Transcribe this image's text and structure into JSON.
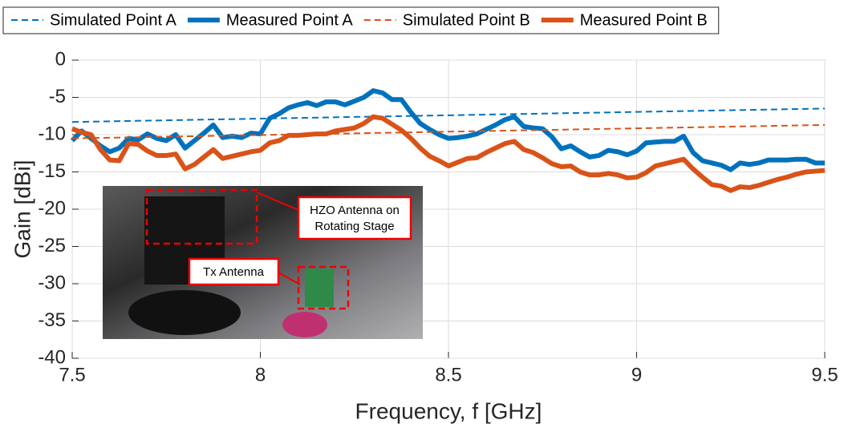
{
  "chart_data": {
    "type": "line",
    "xlabel": "Frequency, f [GHz]",
    "ylabel": "Gain [dBi]",
    "xlim": [
      7.5,
      9.5
    ],
    "ylim": [
      -40,
      0
    ],
    "xticks": [
      7.5,
      8,
      8.5,
      9,
      9.5
    ],
    "yticks": [
      0,
      -5,
      -10,
      -15,
      -20,
      -25,
      -30,
      -35,
      -40
    ],
    "grid": true,
    "legend": "top",
    "annotations": [
      "HZO Antenna on Rotating Stage",
      "Tx Antenna"
    ],
    "series": [
      {
        "name": "Simulated Point A",
        "color": "#0072bd",
        "style": "dashed",
        "x": [
          7.5,
          9.5
        ],
        "values": [
          -8.3,
          -6.5
        ]
      },
      {
        "name": "Measured Point A",
        "color": "#0072bd",
        "style": "solid",
        "x": [
          7.5,
          7.525,
          7.55,
          7.575,
          7.6,
          7.625,
          7.65,
          7.675,
          7.7,
          7.725,
          7.75,
          7.775,
          7.8,
          7.825,
          7.85,
          7.875,
          7.9,
          7.925,
          7.95,
          7.975,
          8.0,
          8.025,
          8.05,
          8.075,
          8.1,
          8.125,
          8.15,
          8.175,
          8.2,
          8.225,
          8.25,
          8.275,
          8.3,
          8.325,
          8.35,
          8.375,
          8.4,
          8.425,
          8.45,
          8.475,
          8.5,
          8.525,
          8.55,
          8.575,
          8.6,
          8.625,
          8.65,
          8.675,
          8.7,
          8.725,
          8.75,
          8.775,
          8.8,
          8.825,
          8.85,
          8.875,
          8.9,
          8.925,
          8.95,
          8.975,
          9.0,
          9.025,
          9.05,
          9.075,
          9.1,
          9.125,
          9.15,
          9.175,
          9.2,
          9.225,
          9.25,
          9.275,
          9.3,
          9.325,
          9.35,
          9.375,
          9.4,
          9.425,
          9.45,
          9.475,
          9.5
        ],
        "values": [
          -10.8,
          -9.5,
          -10.5,
          -11.5,
          -12.3,
          -11.8,
          -10.5,
          -10.7,
          -9.9,
          -10.5,
          -10.8,
          -10.0,
          -11.8,
          -10.8,
          -9.8,
          -8.7,
          -10.4,
          -10.2,
          -10.4,
          -9.8,
          -9.9,
          -7.8,
          -7.2,
          -6.4,
          -6.0,
          -5.7,
          -6.1,
          -5.6,
          -5.6,
          -6.0,
          -5.5,
          -5.0,
          -4.1,
          -4.4,
          -5.3,
          -5.3,
          -7.0,
          -8.5,
          -9.3,
          -10.0,
          -10.5,
          -10.4,
          -10.2,
          -9.9,
          -9.3,
          -8.7,
          -8.0,
          -7.6,
          -8.9,
          -9.1,
          -9.2,
          -10.3,
          -11.9,
          -11.5,
          -12.3,
          -13.0,
          -12.8,
          -12.1,
          -12.3,
          -12.7,
          -12.2,
          -11.1,
          -11.0,
          -10.9,
          -10.9,
          -10.2,
          -12.4,
          -13.5,
          -13.8,
          -14.1,
          -14.7,
          -13.8,
          -14.0,
          -13.8,
          -13.4,
          -13.4,
          -13.4,
          -13.3,
          -13.3,
          -13.8,
          -13.8
        ]
      },
      {
        "name": "Simulated Point B",
        "color": "#d95319",
        "style": "dashed",
        "x": [
          7.5,
          9.5
        ],
        "values": [
          -10.5,
          -8.7
        ]
      },
      {
        "name": "Measured Point B",
        "color": "#d95319",
        "style": "solid",
        "x": [
          7.5,
          7.525,
          7.55,
          7.575,
          7.6,
          7.625,
          7.65,
          7.675,
          7.7,
          7.725,
          7.75,
          7.775,
          7.8,
          7.825,
          7.85,
          7.875,
          7.9,
          7.925,
          7.95,
          7.975,
          8.0,
          8.025,
          8.05,
          8.075,
          8.1,
          8.125,
          8.15,
          8.175,
          8.2,
          8.225,
          8.25,
          8.275,
          8.3,
          8.325,
          8.35,
          8.375,
          8.4,
          8.425,
          8.45,
          8.475,
          8.5,
          8.525,
          8.55,
          8.575,
          8.6,
          8.625,
          8.65,
          8.675,
          8.7,
          8.725,
          8.75,
          8.775,
          8.8,
          8.825,
          8.85,
          8.875,
          8.9,
          8.925,
          8.95,
          8.975,
          9.0,
          9.025,
          9.05,
          9.075,
          9.1,
          9.125,
          9.15,
          9.175,
          9.2,
          9.225,
          9.25,
          9.275,
          9.3,
          9.325,
          9.35,
          9.375,
          9.4,
          9.425,
          9.45,
          9.475,
          9.5
        ],
        "values": [
          -9.2,
          -9.7,
          -10.0,
          -12.0,
          -13.4,
          -13.5,
          -11.2,
          -11.3,
          -12.2,
          -12.8,
          -12.8,
          -12.6,
          -14.6,
          -14.0,
          -13.0,
          -12.0,
          -13.2,
          -12.9,
          -12.6,
          -12.3,
          -12.1,
          -11.1,
          -10.8,
          -10.1,
          -10.1,
          -10.0,
          -9.9,
          -9.9,
          -9.5,
          -9.3,
          -9.1,
          -8.5,
          -7.6,
          -7.8,
          -8.6,
          -9.4,
          -10.5,
          -11.8,
          -12.9,
          -13.5,
          -14.2,
          -13.7,
          -13.2,
          -13.1,
          -12.4,
          -11.8,
          -11.2,
          -10.9,
          -12.0,
          -12.4,
          -13.1,
          -13.9,
          -14.3,
          -14.2,
          -15.0,
          -15.4,
          -15.4,
          -15.2,
          -15.4,
          -15.8,
          -15.7,
          -15.1,
          -14.2,
          -13.9,
          -13.6,
          -13.3,
          -14.6,
          -15.7,
          -16.7,
          -16.9,
          -17.5,
          -17.0,
          -17.1,
          -16.8,
          -16.4,
          -16.0,
          -15.7,
          -15.3,
          -15.0,
          -14.9,
          -14.8
        ]
      }
    ]
  }
}
